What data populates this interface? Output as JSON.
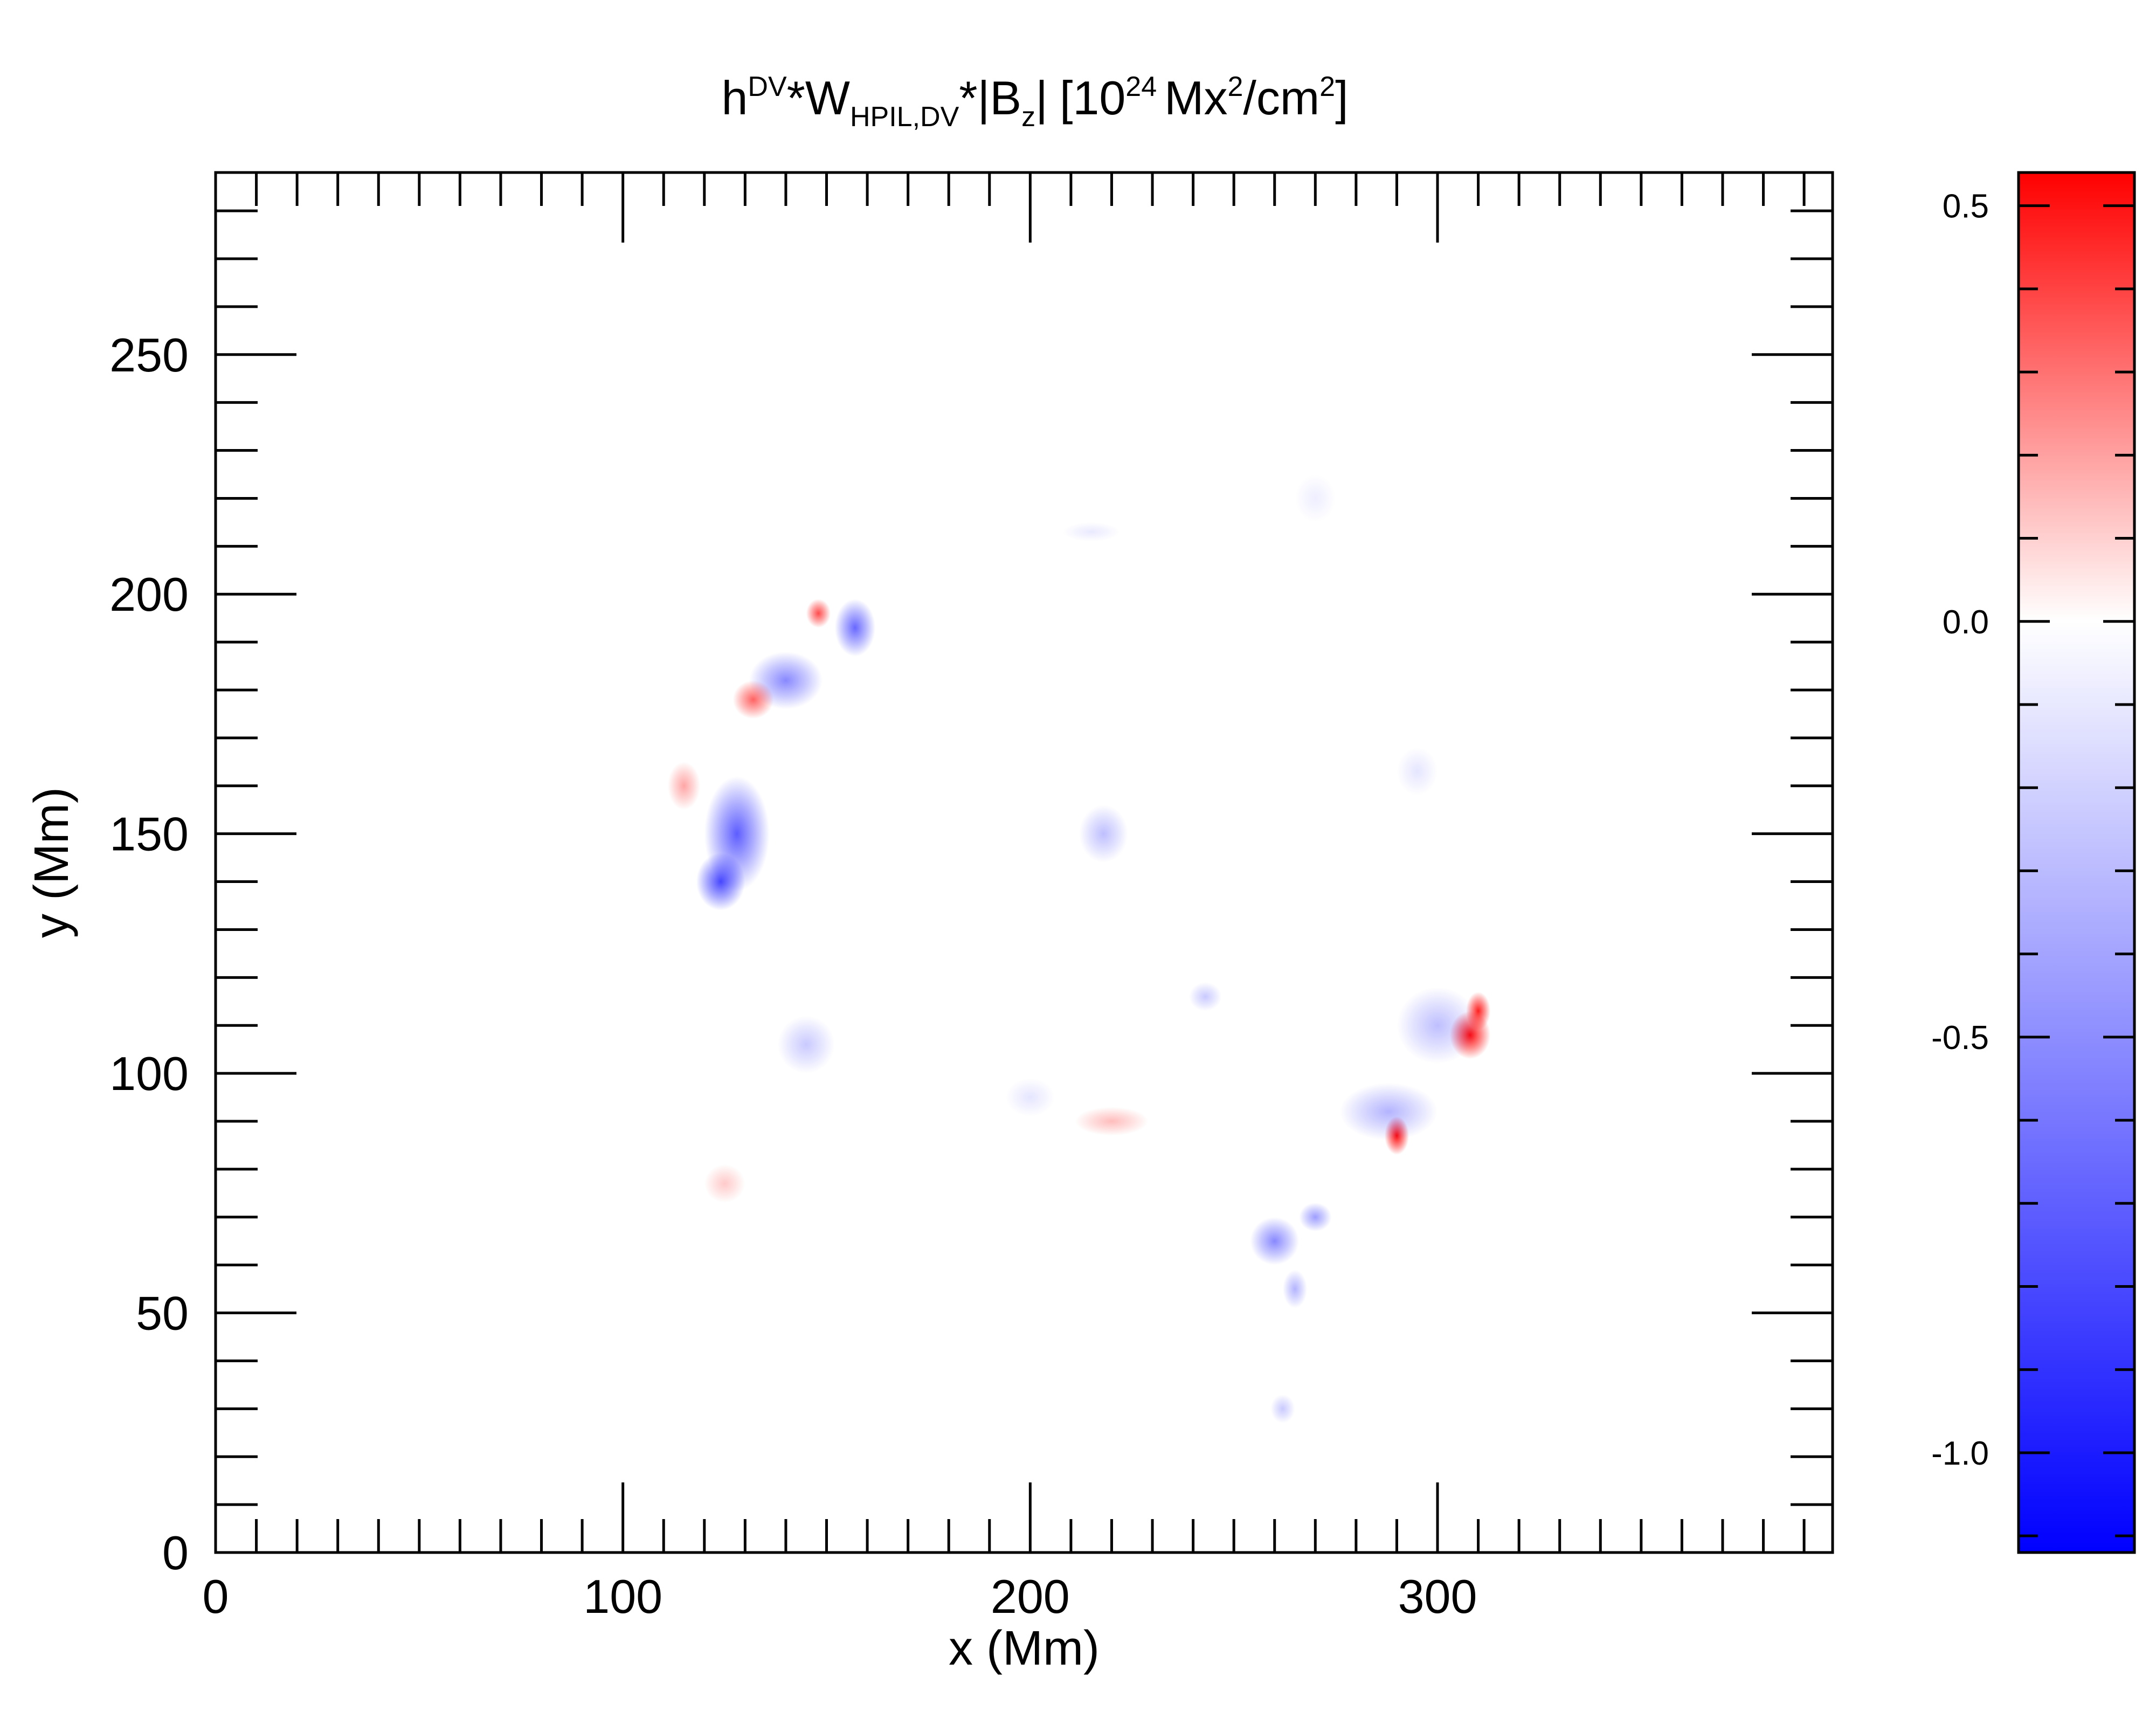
{
  "chart_data": {
    "type": "heatmap",
    "title": {
      "h": "h",
      "h_sup": "DV",
      "star1": "*",
      "w": "W",
      "w_sub": "HPIL,DV",
      "star2": "*",
      "bz_open": "|B",
      "bz_sub": "z",
      "bz_close": "|",
      "unit_open": "[10",
      "unit_sup": "24",
      "unit_mx": "Mx",
      "unit_sup2": "2",
      "unit_cm": "/cm",
      "unit_sup3": "2",
      "unit_close": "]"
    },
    "xlabel": "x (Mm)",
    "ylabel": "y (Mm)",
    "xlim": [
      0,
      397
    ],
    "ylim": [
      0,
      288
    ],
    "x_ticks": [
      "0",
      "100",
      "200",
      "300"
    ],
    "y_ticks": [
      "0",
      "50",
      "100",
      "150",
      "200",
      "250"
    ],
    "colorbar": {
      "range": [
        -1.12,
        0.54
      ],
      "ticks": [
        "0.5",
        "0.0",
        "-0.5",
        "-1.0"
      ],
      "colors": {
        "negative": "#0000ff",
        "zero": "#ffffff",
        "positive": "#ff0000"
      }
    },
    "features": [
      {
        "x": 128,
        "y": 150,
        "sx": 8,
        "sy": 12,
        "value": -0.75
      },
      {
        "x": 124,
        "y": 140,
        "sx": 6,
        "sy": 6,
        "value": -0.85
      },
      {
        "x": 140,
        "y": 182,
        "sx": 9,
        "sy": 6,
        "value": -0.55
      },
      {
        "x": 157,
        "y": 193,
        "sx": 5,
        "sy": 6,
        "value": -0.7
      },
      {
        "x": 148,
        "y": 196,
        "sx": 3,
        "sy": 3,
        "value": 0.4
      },
      {
        "x": 132,
        "y": 178,
        "sx": 5,
        "sy": 4,
        "value": 0.35
      },
      {
        "x": 115,
        "y": 160,
        "sx": 4,
        "sy": 5,
        "value": 0.2
      },
      {
        "x": 308,
        "y": 108,
        "sx": 5,
        "sy": 5,
        "value": 0.55
      },
      {
        "x": 310,
        "y": 113,
        "sx": 3,
        "sy": 4,
        "value": 0.5
      },
      {
        "x": 300,
        "y": 110,
        "sx": 10,
        "sy": 8,
        "value": -0.3
      },
      {
        "x": 290,
        "y": 87,
        "sx": 3,
        "sy": 4,
        "value": 0.55
      },
      {
        "x": 288,
        "y": 92,
        "sx": 12,
        "sy": 6,
        "value": -0.35
      },
      {
        "x": 260,
        "y": 65,
        "sx": 6,
        "sy": 5,
        "value": -0.55
      },
      {
        "x": 270,
        "y": 70,
        "sx": 4,
        "sy": 3,
        "value": -0.45
      },
      {
        "x": 265,
        "y": 55,
        "sx": 3,
        "sy": 4,
        "value": -0.35
      },
      {
        "x": 262,
        "y": 30,
        "sx": 3,
        "sy": 3,
        "value": -0.25
      },
      {
        "x": 218,
        "y": 150,
        "sx": 6,
        "sy": 6,
        "value": -0.3
      },
      {
        "x": 145,
        "y": 106,
        "sx": 7,
        "sy": 6,
        "value": -0.25
      },
      {
        "x": 243,
        "y": 116,
        "sx": 4,
        "sy": 3,
        "value": -0.25
      },
      {
        "x": 220,
        "y": 90,
        "sx": 9,
        "sy": 3,
        "value": 0.15
      },
      {
        "x": 200,
        "y": 95,
        "sx": 6,
        "sy": 4,
        "value": -0.12
      },
      {
        "x": 125,
        "y": 77,
        "sx": 5,
        "sy": 4,
        "value": 0.12
      },
      {
        "x": 295,
        "y": 163,
        "sx": 5,
        "sy": 5,
        "value": -0.12
      },
      {
        "x": 270,
        "y": 220,
        "sx": 5,
        "sy": 5,
        "value": -0.08
      },
      {
        "x": 215,
        "y": 213,
        "sx": 7,
        "sy": 2,
        "value": -0.1
      }
    ]
  }
}
